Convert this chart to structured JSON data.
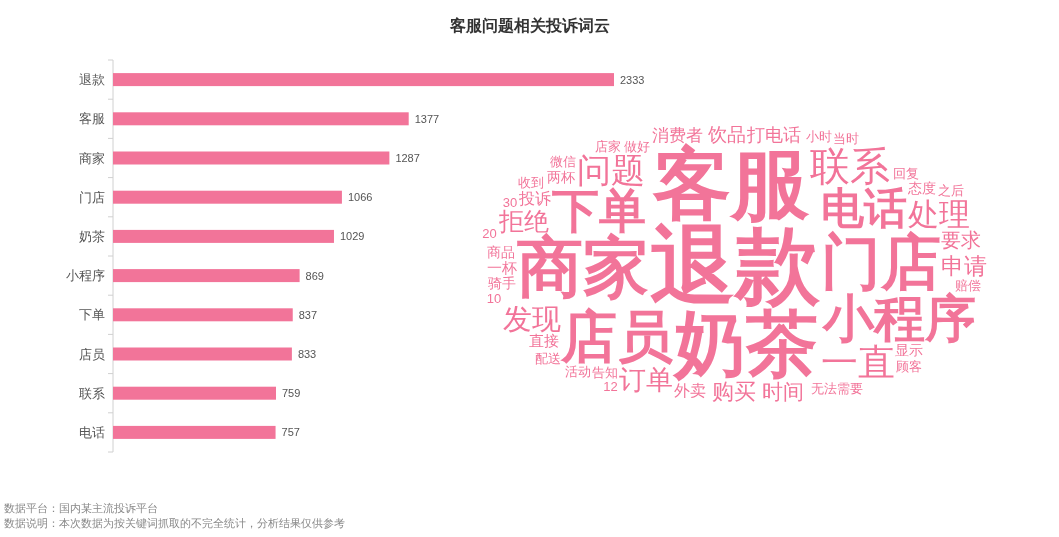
{
  "chart_data": [
    {
      "type": "bar",
      "orientation": "horizontal",
      "categories": [
        "退款",
        "客服",
        "商家",
        "门店",
        "奶茶",
        "小程序",
        "下单",
        "店员",
        "联系",
        "电话"
      ],
      "values": [
        2333,
        1377,
        1287,
        1066,
        1029,
        869,
        837,
        833,
        759,
        757
      ],
      "color": "#f27499",
      "data_labels": true,
      "annotations": [
        "数据平台：国内某主流投诉平台",
        "数据说明：本次数据为按关键词抓取的不完全统计，分析结果仅供参考"
      ]
    },
    {
      "type": "other",
      "title": "客服问题相关投诉词云",
      "color": "#f27499",
      "annotations": [
        "退款",
        "客服",
        "奶茶",
        "商家",
        "门店",
        "店员",
        "小程序",
        "下单",
        "电话",
        "联系",
        "一直",
        "问题",
        "处理",
        "发现",
        "订单",
        "拒绝",
        "申请",
        "购买",
        "时间",
        "要求",
        "饮品",
        "打电话",
        "消费者",
        "外卖",
        "投诉",
        "一杯",
        "直接",
        "态度",
        "显示",
        "骑手",
        "商品",
        "两杯",
        "告知",
        "做好",
        "赔偿",
        "回复",
        "无法",
        "小时",
        "活动",
        "店家",
        "需要",
        "顾客",
        "配送",
        "收到",
        "微信",
        "当时",
        "之后",
        "10",
        "12",
        "20",
        "30"
      ]
    }
  ]
}
